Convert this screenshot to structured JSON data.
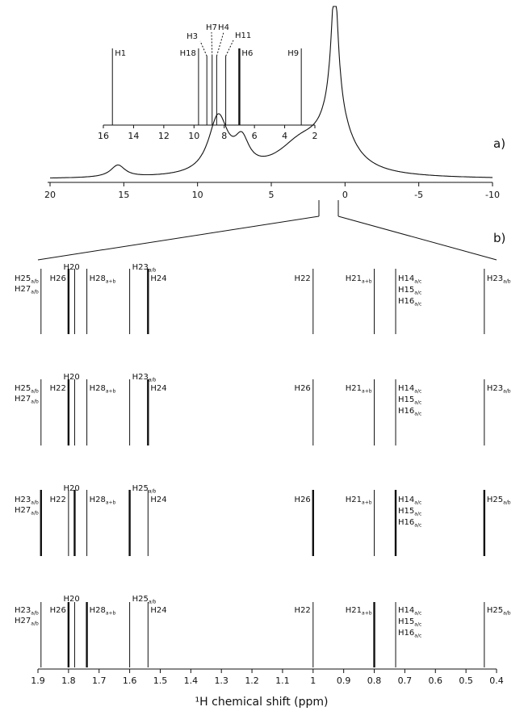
{
  "panel_labels": {
    "a": "a)",
    "b": "b)"
  },
  "chart_data": [
    {
      "id": "a-inset",
      "type": "stick",
      "xlim": [
        16,
        2
      ],
      "xticks": [
        "16",
        "14",
        "12",
        "10",
        "8",
        "6",
        "4",
        "2"
      ],
      "peaks": [
        {
          "x": 15.4,
          "label": "H1",
          "sub": "",
          "h": 1.0,
          "w": 1
        },
        {
          "x": 9.7,
          "label": "H18",
          "sub": "",
          "h": 1.0,
          "w": 1
        },
        {
          "x": 9.15,
          "label": "H3",
          "sub": "",
          "h": 0.9,
          "w": 1
        },
        {
          "x": 8.8,
          "label": "H7",
          "sub": "",
          "h": 0.9,
          "w": 1
        },
        {
          "x": 8.5,
          "label": "H4",
          "sub": "",
          "h": 0.9,
          "w": 1
        },
        {
          "x": 7.9,
          "label": "H11",
          "sub": "",
          "h": 0.9,
          "w": 1
        },
        {
          "x": 7.0,
          "label": "H6",
          "sub": "",
          "h": 1.0,
          "w": 2
        },
        {
          "x": 2.9,
          "label": "H9",
          "sub": "",
          "h": 1.0,
          "w": 1
        }
      ]
    },
    {
      "id": "a-spectrum",
      "type": "line",
      "xlim": [
        20,
        -10
      ],
      "xticks": [
        "20",
        "15",
        "10",
        "5",
        "0",
        "-5",
        "-10"
      ],
      "peaks": [
        {
          "x": 15.4,
          "w": 0.6,
          "h": 0.07
        },
        {
          "x": 8.6,
          "w": 0.8,
          "h": 0.33
        },
        {
          "x": 7.0,
          "w": 0.6,
          "h": 0.16
        },
        {
          "x": 3.0,
          "w": 2.0,
          "h": 0.17
        },
        {
          "x": 0.7,
          "w": 0.3,
          "h": 1.0
        },
        {
          "x": 0.7,
          "w": 1.3,
          "h": 0.3
        }
      ]
    },
    {
      "id": "b-stick-plots",
      "type": "stick",
      "xlim": [
        1.9,
        0.4
      ],
      "xlabel": "¹H chemical shift (ppm)",
      "xticks": [
        "1.9",
        "1.8",
        "1.7",
        "1.6",
        "1.5",
        "1.4",
        "1.3",
        "1.2",
        "1.1",
        "1",
        "0.9",
        "0.8",
        "0.7",
        "0.6",
        "0.5",
        "0.4"
      ],
      "rows": [
        {
          "peaks": [
            {
              "x": 1.89,
              "w": 1
            },
            {
              "x": 1.8,
              "w": 2
            },
            {
              "x": 1.78,
              "w": 1
            },
            {
              "x": 1.74,
              "w": 1
            },
            {
              "x": 1.6,
              "w": 1
            },
            {
              "x": 1.54,
              "w": 2
            },
            {
              "x": 1.0,
              "w": 1
            },
            {
              "x": 0.8,
              "w": 1
            },
            {
              "x": 0.73,
              "w": 1
            },
            {
              "x": 0.44,
              "w": 1
            }
          ],
          "labels": [
            {
              "x": 1.89,
              "anchor": "end",
              "dy": 0,
              "text": "H25",
              "sub": "a/b"
            },
            {
              "x": 1.89,
              "anchor": "end",
              "dy": 13,
              "text": "H27",
              "sub": "a/b"
            },
            {
              "x": 1.8,
              "anchor": "end",
              "dy": 0,
              "text": "H26",
              "sub": ""
            },
            {
              "x": 1.79,
              "anchor": "mid",
              "dy": -14,
              "text": "H20",
              "sub": ""
            },
            {
              "x": 1.74,
              "anchor": "start",
              "dy": 0,
              "text": "H28",
              "sub": "a+b"
            },
            {
              "x": 1.6,
              "anchor": "start",
              "dy": -14,
              "text": "H23",
              "sub": "a/b"
            },
            {
              "x": 1.54,
              "anchor": "start",
              "dy": 0,
              "text": "H24",
              "sub": ""
            },
            {
              "x": 1.0,
              "anchor": "end",
              "dy": 0,
              "text": "H22",
              "sub": ""
            },
            {
              "x": 0.8,
              "anchor": "end",
              "dy": 0,
              "text": "H21",
              "sub": "a+b"
            },
            {
              "x": 0.73,
              "anchor": "start",
              "dy": 0,
              "text": "H14",
              "sub": "a/c"
            },
            {
              "x": 0.73,
              "anchor": "start",
              "dy": 14,
              "text": "H15",
              "sub": "a/c"
            },
            {
              "x": 0.73,
              "anchor": "start",
              "dy": 28,
              "text": "H16",
              "sub": "a/c"
            },
            {
              "x": 0.44,
              "anchor": "start",
              "dy": 0,
              "text": "H23",
              "sub": "a/b"
            }
          ]
        },
        {
          "peaks": [
            {
              "x": 1.89,
              "w": 1
            },
            {
              "x": 1.8,
              "w": 2
            },
            {
              "x": 1.78,
              "w": 1
            },
            {
              "x": 1.74,
              "w": 1
            },
            {
              "x": 1.6,
              "w": 1
            },
            {
              "x": 1.54,
              "w": 2
            },
            {
              "x": 1.0,
              "w": 1
            },
            {
              "x": 0.8,
              "w": 1
            },
            {
              "x": 0.73,
              "w": 1
            },
            {
              "x": 0.44,
              "w": 1
            }
          ],
          "labels": [
            {
              "x": 1.89,
              "anchor": "end",
              "dy": 0,
              "text": "H25",
              "sub": "a/b"
            },
            {
              "x": 1.89,
              "anchor": "end",
              "dy": 13,
              "text": "H27",
              "sub": "a/b"
            },
            {
              "x": 1.8,
              "anchor": "end",
              "dy": 0,
              "text": "H22",
              "sub": ""
            },
            {
              "x": 1.79,
              "anchor": "mid",
              "dy": -14,
              "text": "H20",
              "sub": ""
            },
            {
              "x": 1.74,
              "anchor": "start",
              "dy": 0,
              "text": "H28",
              "sub": "a+b"
            },
            {
              "x": 1.6,
              "anchor": "start",
              "dy": -14,
              "text": "H23",
              "sub": "a/b"
            },
            {
              "x": 1.54,
              "anchor": "start",
              "dy": 0,
              "text": "H24",
              "sub": ""
            },
            {
              "x": 1.0,
              "anchor": "end",
              "dy": 0,
              "text": "H26",
              "sub": ""
            },
            {
              "x": 0.8,
              "anchor": "end",
              "dy": 0,
              "text": "H21",
              "sub": "a+b"
            },
            {
              "x": 0.73,
              "anchor": "start",
              "dy": 0,
              "text": "H14",
              "sub": "a/c"
            },
            {
              "x": 0.73,
              "anchor": "start",
              "dy": 14,
              "text": "H15",
              "sub": "a/c"
            },
            {
              "x": 0.73,
              "anchor": "start",
              "dy": 28,
              "text": "H16",
              "sub": "a/c"
            },
            {
              "x": 0.44,
              "anchor": "start",
              "dy": 0,
              "text": "H23",
              "sub": "a/b"
            }
          ]
        },
        {
          "peaks": [
            {
              "x": 1.89,
              "w": 2
            },
            {
              "x": 1.8,
              "w": 1
            },
            {
              "x": 1.78,
              "w": 2
            },
            {
              "x": 1.74,
              "w": 1
            },
            {
              "x": 1.6,
              "w": 2
            },
            {
              "x": 1.54,
              "w": 1
            },
            {
              "x": 1.0,
              "w": 2
            },
            {
              "x": 0.8,
              "w": 1
            },
            {
              "x": 0.73,
              "w": 2
            },
            {
              "x": 0.44,
              "w": 2
            }
          ],
          "labels": [
            {
              "x": 1.89,
              "anchor": "end",
              "dy": 0,
              "text": "H23",
              "sub": "a/b"
            },
            {
              "x": 1.89,
              "anchor": "end",
              "dy": 13,
              "text": "H27",
              "sub": "a/b"
            },
            {
              "x": 1.8,
              "anchor": "end",
              "dy": 0,
              "text": "H22",
              "sub": ""
            },
            {
              "x": 1.79,
              "anchor": "mid",
              "dy": -14,
              "text": "H20",
              "sub": ""
            },
            {
              "x": 1.74,
              "anchor": "start",
              "dy": 0,
              "text": "H28",
              "sub": "a+b"
            },
            {
              "x": 1.6,
              "anchor": "start",
              "dy": -14,
              "text": "H25",
              "sub": "a/b"
            },
            {
              "x": 1.54,
              "anchor": "start",
              "dy": 0,
              "text": "H24",
              "sub": ""
            },
            {
              "x": 1.0,
              "anchor": "end",
              "dy": 0,
              "text": "H26",
              "sub": ""
            },
            {
              "x": 0.8,
              "anchor": "end",
              "dy": 0,
              "text": "H21",
              "sub": "a+b"
            },
            {
              "x": 0.73,
              "anchor": "start",
              "dy": 0,
              "text": "H14",
              "sub": "a/c"
            },
            {
              "x": 0.73,
              "anchor": "start",
              "dy": 14,
              "text": "H15",
              "sub": "a/c"
            },
            {
              "x": 0.73,
              "anchor": "start",
              "dy": 28,
              "text": "H16",
              "sub": "a/c"
            },
            {
              "x": 0.44,
              "anchor": "start",
              "dy": 0,
              "text": "H25",
              "sub": "a/b"
            }
          ]
        },
        {
          "peaks": [
            {
              "x": 1.89,
              "w": 1
            },
            {
              "x": 1.8,
              "w": 2
            },
            {
              "x": 1.78,
              "w": 1
            },
            {
              "x": 1.74,
              "w": 2
            },
            {
              "x": 1.6,
              "w": 1
            },
            {
              "x": 1.54,
              "w": 1
            },
            {
              "x": 1.0,
              "w": 1
            },
            {
              "x": 0.8,
              "w": 2
            },
            {
              "x": 0.73,
              "w": 1
            },
            {
              "x": 0.44,
              "w": 1
            }
          ],
          "labels": [
            {
              "x": 1.89,
              "anchor": "end",
              "dy": 0,
              "text": "H23",
              "sub": "a/b"
            },
            {
              "x": 1.89,
              "anchor": "end",
              "dy": 13,
              "text": "H27",
              "sub": "a/b"
            },
            {
              "x": 1.8,
              "anchor": "end",
              "dy": 0,
              "text": "H26",
              "sub": ""
            },
            {
              "x": 1.79,
              "anchor": "mid",
              "dy": -14,
              "text": "H20",
              "sub": ""
            },
            {
              "x": 1.74,
              "anchor": "start",
              "dy": 0,
              "text": "H28",
              "sub": "a+b"
            },
            {
              "x": 1.6,
              "anchor": "start",
              "dy": -14,
              "text": "H25",
              "sub": "a/b"
            },
            {
              "x": 1.54,
              "anchor": "start",
              "dy": 0,
              "text": "H24",
              "sub": ""
            },
            {
              "x": 1.0,
              "anchor": "end",
              "dy": 0,
              "text": "H22",
              "sub": ""
            },
            {
              "x": 0.8,
              "anchor": "end",
              "dy": 0,
              "text": "H21",
              "sub": "a+b"
            },
            {
              "x": 0.73,
              "anchor": "start",
              "dy": 0,
              "text": "H14",
              "sub": "a/c"
            },
            {
              "x": 0.73,
              "anchor": "start",
              "dy": 14,
              "text": "H15",
              "sub": "a/c"
            },
            {
              "x": 0.73,
              "anchor": "start",
              "dy": 28,
              "text": "H16",
              "sub": "a/c"
            },
            {
              "x": 0.44,
              "anchor": "start",
              "dy": 0,
              "text": "H25",
              "sub": "a/b"
            }
          ]
        }
      ]
    }
  ]
}
